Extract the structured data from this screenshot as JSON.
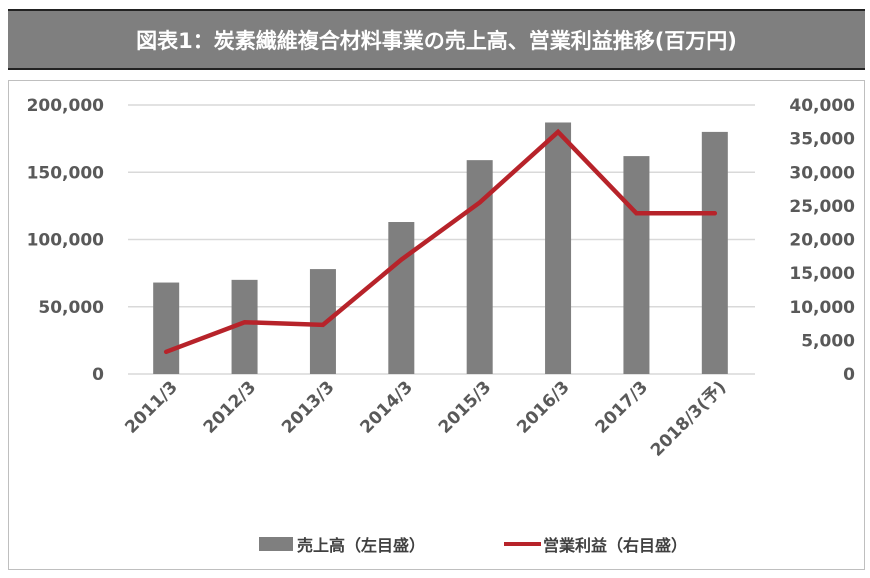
{
  "title": "図表1：炭素繊維複合材料事業の売上高、営業利益推移(百万円)",
  "chart_data": {
    "type": "bar+line",
    "title": "図表1：炭素繊維複合材料事業の売上高、営業利益推移(百万円)",
    "categories": [
      "2011/3",
      "2012/3",
      "2013/3",
      "2014/3",
      "2015/3",
      "2016/3",
      "2017/3",
      "2018/3(予)"
    ],
    "series": [
      {
        "name": "売上高（左目盛）",
        "type": "bar",
        "axis": "left",
        "color": "#7f7f7f",
        "values": [
          68000,
          70000,
          78000,
          113000,
          159000,
          187000,
          162000,
          180000
        ]
      },
      {
        "name": "営業利益（右目盛）",
        "type": "line",
        "axis": "right",
        "color": "#b7232a",
        "values": [
          3300,
          7700,
          7300,
          17000,
          25500,
          36000,
          23900,
          23900
        ]
      }
    ],
    "left_axis": {
      "ylim": [
        0,
        200000
      ],
      "ticks": [
        "0",
        "50,000",
        "100,000",
        "150,000",
        "200,000"
      ]
    },
    "right_axis": {
      "ylim": [
        0,
        40000
      ],
      "ticks": [
        "0",
        "5,000",
        "10,000",
        "15,000",
        "20,000",
        "25,000",
        "30,000",
        "35,000",
        "40,000"
      ]
    },
    "grid": true,
    "legend_position": "bottom"
  }
}
